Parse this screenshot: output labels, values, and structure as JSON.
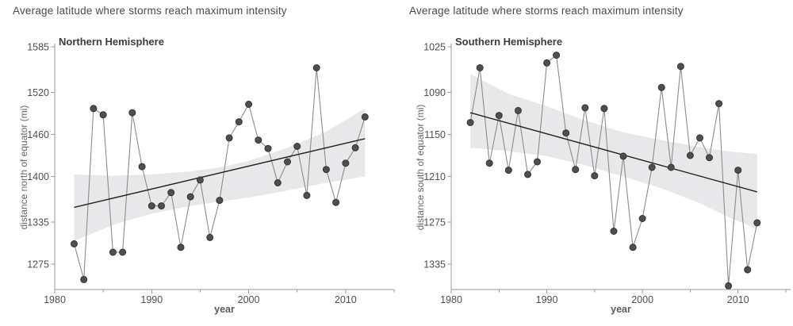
{
  "colors": {
    "band": "#e8e8eb",
    "series_line": "#8c8c8c",
    "trend_line": "#222222",
    "point_fill": "#4f4f4f",
    "point_edge": "#333333",
    "axis": "#9a9a9a",
    "tick_text": "#4f4f4f"
  },
  "charts": [
    {
      "chart_data": {
        "type": "scatter",
        "title": "Average latitude where storms reach maximum intensity",
        "panel_label": "Northern Hemisphere",
        "xlabel": "year",
        "ylabel": "distance north of equator (mi)",
        "legend_position": "none",
        "grid": false,
        "xlim": [
          1980,
          2015
        ],
        "x_ticks": [
          1980,
          1990,
          2000,
          2010
        ],
        "x_minor_ticks": [
          1985,
          1995,
          2005,
          2015
        ],
        "y_ticks": [
          1585,
          1520,
          1460,
          1400,
          1335,
          1275
        ],
        "y_axis_direction": "up",
        "x": [
          1982,
          1983,
          1984,
          1985,
          1986,
          1987,
          1988,
          1989,
          1990,
          1991,
          1992,
          1993,
          1994,
          1995,
          1996,
          1997,
          1998,
          1999,
          2000,
          2001,
          2002,
          2003,
          2004,
          2005,
          2006,
          2007,
          2008,
          2009,
          2010,
          2011,
          2012
        ],
        "y": [
          1304,
          1253,
          1497,
          1488,
          1292,
          1292,
          1491,
          1414,
          1358,
          1358,
          1377,
          1299,
          1371,
          1395,
          1313,
          1366,
          1455,
          1478,
          1503,
          1452,
          1440,
          1391,
          1421,
          1443,
          1373,
          1555,
          1410,
          1363,
          1419,
          1441,
          1485
        ],
        "trend": {
          "x": [
            1982,
            2012
          ],
          "y": [
            1356,
            1454
          ]
        },
        "band": {
          "x": [
            1982,
            1986,
            1990,
            1994,
            1997,
            2000,
            2004,
            2008,
            2012
          ],
          "upper": [
            1403,
            1401,
            1403,
            1407,
            1413,
            1422,
            1441,
            1464,
            1497
          ],
          "lower": [
            1308,
            1331,
            1347,
            1358,
            1364,
            1370,
            1380,
            1391,
            1400
          ]
        }
      }
    },
    {
      "chart_data": {
        "type": "scatter",
        "title": "Average latitude where storms reach maximum intensity",
        "panel_label": "Southern Hemisphere",
        "xlabel": "year",
        "ylabel": "distance south of equator (mi)",
        "legend_position": "none",
        "grid": false,
        "xlim": [
          1980,
          2015.5
        ],
        "x_ticks": [
          1980,
          1990,
          2000,
          2010
        ],
        "x_minor_ticks": [
          1985,
          1995,
          2005,
          2015
        ],
        "y_ticks": [
          1025,
          1090,
          1150,
          1210,
          1275,
          1335
        ],
        "y_axis_direction": "down",
        "x": [
          1982,
          1983,
          1984,
          1985,
          1986,
          1987,
          1988,
          1989,
          1990,
          1991,
          1992,
          1993,
          1994,
          1995,
          1996,
          1997,
          1998,
          1999,
          2000,
          2001,
          2002,
          2003,
          2004,
          2005,
          2006,
          2007,
          2008,
          2009,
          2010,
          2011,
          2012
        ],
        "y": [
          1133,
          1055,
          1191,
          1123,
          1201,
          1116,
          1207,
          1189,
          1048,
          1037,
          1148,
          1200,
          1112,
          1209,
          1113,
          1288,
          1181,
          1311,
          1270,
          1197,
          1083,
          1197,
          1053,
          1180,
          1155,
          1183,
          1106,
          1366,
          1201,
          1343,
          1276
        ],
        "trend": {
          "x": [
            1982,
            2012
          ],
          "y": [
            1119,
            1232
          ]
        },
        "band": {
          "x": [
            1982,
            1986,
            1990,
            1994,
            1998,
            2002,
            2006,
            2009,
            2012
          ],
          "upper": [
            1064,
            1092,
            1110,
            1130,
            1147,
            1158,
            1168,
            1174,
            1178
          ],
          "lower": [
            1169,
            1174,
            1181,
            1194,
            1210,
            1227,
            1248,
            1268,
            1285
          ]
        }
      }
    }
  ]
}
